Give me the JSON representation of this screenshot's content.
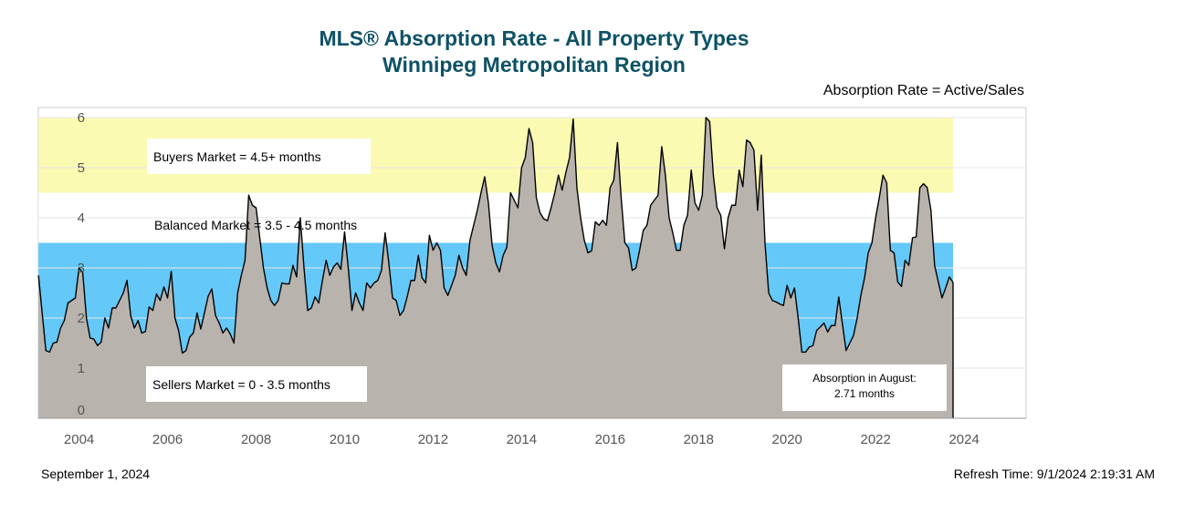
{
  "header": {
    "title_line1": "MLS® Absorption Rate - All Property Types",
    "title_line2": "Winnipeg Metropolitan Region",
    "formula": "Absorption Rate = Active/Sales"
  },
  "footer": {
    "date": "September 1, 2024",
    "refresh": "Refresh Time: 9/1/2024 2:19:31 AM"
  },
  "chart_data": {
    "type": "area",
    "xlabel": "",
    "ylabel": "",
    "ylim": [
      0,
      6.2
    ],
    "xlim": [
      2003.58,
      2025.9
    ],
    "x_ticks": [
      "2004",
      "2006",
      "2008",
      "2010",
      "2012",
      "2014",
      "2016",
      "2018",
      "2020",
      "2022",
      "2024"
    ],
    "y_ticks": [
      "0",
      "1",
      "2",
      "3",
      "4",
      "5",
      "6"
    ],
    "grid": true,
    "colors": {
      "area_fill": "#b9b3ae",
      "line": "#000000",
      "buyers_band": "#fbfab2",
      "sellers_band": "#64c8f8"
    },
    "bands": [
      {
        "label": "Buyers Market = 4.5+ months",
        "from": 4.5,
        "to": 6.0,
        "color": "#fbfab2"
      },
      {
        "label": "Balanced Market = 3.5 - 4.5 months",
        "from": 3.5,
        "to": 4.5,
        "color": "#ffffff"
      },
      {
        "label": "Sellers Market = 0 - 3.5 months",
        "from": 0,
        "to": 3.5,
        "color": "#64c8f8"
      }
    ],
    "annotation": {
      "line1": "Absorption in August:",
      "line2": "2.71 months"
    },
    "series": [
      {
        "x_start": "2003-08",
        "frequency": "monthly",
        "values": [
          2.85,
          2.1,
          1.35,
          1.32,
          1.5,
          1.52,
          1.8,
          1.95,
          2.3,
          2.35,
          2.4,
          3.0,
          2.9,
          2.0,
          1.6,
          1.58,
          1.45,
          1.52,
          2.0,
          1.8,
          2.2,
          2.2,
          2.35,
          2.5,
          2.75,
          2.05,
          1.8,
          1.95,
          1.7,
          1.73,
          2.22,
          2.15,
          2.48,
          2.35,
          2.62,
          2.4,
          2.93,
          2.0,
          1.75,
          1.3,
          1.35,
          1.62,
          1.7,
          2.1,
          1.78,
          2.1,
          2.43,
          2.58,
          2.05,
          1.9,
          1.7,
          1.8,
          1.68,
          1.5,
          2.5,
          2.85,
          3.15,
          4.45,
          4.25,
          4.2,
          3.6,
          3.0,
          2.6,
          2.35,
          2.25,
          2.35,
          2.7,
          2.68,
          2.68,
          3.05,
          2.82,
          4.0,
          3.0,
          2.15,
          2.2,
          2.42,
          2.3,
          2.75,
          3.15,
          2.85,
          3.02,
          3.1,
          2.97,
          3.72,
          3.0,
          2.15,
          2.5,
          2.3,
          2.15,
          2.7,
          2.6,
          2.7,
          2.75,
          2.95,
          3.7,
          3.1,
          2.4,
          2.35,
          2.05,
          2.15,
          2.43,
          2.75,
          2.75,
          3.25,
          2.8,
          2.7,
          3.65,
          3.35,
          3.5,
          3.35,
          2.6,
          2.45,
          2.65,
          2.85,
          3.25,
          3.0,
          2.85,
          3.55,
          3.85,
          4.15,
          4.5,
          4.82,
          4.3,
          3.45,
          3.1,
          2.92,
          3.25,
          3.41,
          4.5,
          4.35,
          4.2,
          5.0,
          5.2,
          5.78,
          5.5,
          4.4,
          4.1,
          3.98,
          3.94,
          4.2,
          4.5,
          4.85,
          4.55,
          4.9,
          5.2,
          5.97,
          4.6,
          4.0,
          3.55,
          3.3,
          3.34,
          3.92,
          3.85,
          3.95,
          3.85,
          4.6,
          4.75,
          5.5,
          4.4,
          3.5,
          3.4,
          2.95,
          3.0,
          3.35,
          3.75,
          3.85,
          4.25,
          4.35,
          4.45,
          5.42,
          4.85,
          4.0,
          3.7,
          3.35,
          3.35,
          3.85,
          4.05,
          4.95,
          4.3,
          4.15,
          4.45,
          6.0,
          5.92,
          4.85,
          4.2,
          4.05,
          3.38,
          4.0,
          4.25,
          4.25,
          4.95,
          4.62,
          5.55,
          5.5,
          5.35,
          4.15,
          5.25,
          3.5,
          2.5,
          2.35,
          2.32,
          2.28,
          2.25,
          2.65,
          2.4,
          2.6,
          2.0,
          1.32,
          1.32,
          1.42,
          1.45,
          1.75,
          1.82,
          1.9,
          1.72,
          1.85,
          1.85,
          2.42,
          1.88,
          1.35,
          1.5,
          1.65,
          2.0,
          2.45,
          2.8,
          3.3,
          3.5,
          4.0,
          4.4,
          4.85,
          4.7,
          3.35,
          3.3,
          2.72,
          2.63,
          3.15,
          3.05,
          3.6,
          3.62,
          4.6,
          4.68,
          4.6,
          4.15,
          3.05,
          2.72,
          2.4,
          2.6,
          2.82,
          2.71
        ]
      }
    ]
  }
}
